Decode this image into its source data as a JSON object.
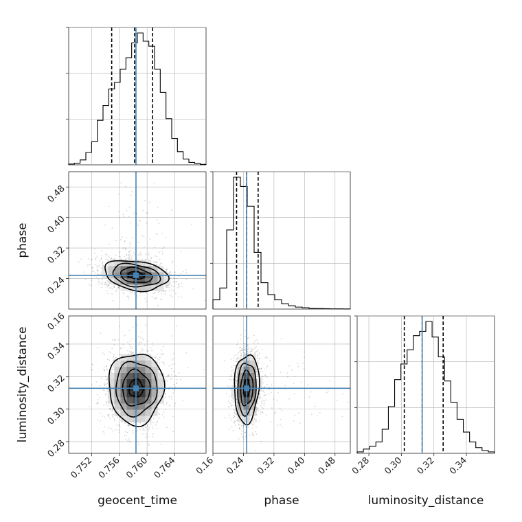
{
  "chart_data": {
    "type": "corner",
    "parameters": [
      {
        "key": "geocent_time",
        "label": "geocent_time",
        "truth": 0.7584,
        "quantiles": [
          0.7549,
          0.7582,
          0.7608
        ],
        "range": [
          0.7487,
          0.7685
        ]
      },
      {
        "key": "phase",
        "label": "phase",
        "truth": 0.2484,
        "quantiles": [
          0.222,
          0.2484,
          0.2785
        ],
        "range": [
          0.16,
          0.52
        ]
      },
      {
        "key": "luminosity_distance",
        "label": "luminosity_distance",
        "truth": 0.3128,
        "quantiles": [
          0.3018,
          0.3128,
          0.3257
        ],
        "range": [
          0.2728,
          0.3573
        ]
      }
    ],
    "ticks": {
      "geocent_time": [
        "0.752",
        "0.756",
        "0.760",
        "0.764"
      ],
      "phase": [
        "0.16",
        "0.24",
        "0.32",
        "0.40",
        "0.48"
      ],
      "luminosity_distance": [
        "0.28",
        "0.30",
        "0.32",
        "0.34"
      ]
    },
    "row_ticks": {
      "phase": [
        "0.24",
        "0.32",
        "0.40",
        "0.48"
      ],
      "luminosity_distance": [
        "0.28",
        "0.30",
        "0.32",
        "0.34"
      ]
    },
    "extra_tick_label": "0.16",
    "histograms": {
      "geocent_time": [
        0.5,
        1.0,
        3.0,
        7.5,
        14,
        27,
        36,
        46,
        50,
        58,
        65,
        74,
        80,
        75,
        72,
        58,
        44,
        28,
        16,
        8,
        3.5,
        1.5,
        0.8,
        0.3
      ],
      "phase": [
        7,
        16,
        60,
        100,
        93,
        78,
        43,
        20,
        11,
        7,
        4,
        2.5,
        1.5,
        1,
        0.5,
        0.4,
        0.3,
        0.2,
        0.2,
        0.1
      ],
      "luminosity_distance": [
        1,
        3,
        5,
        8,
        17,
        33,
        52,
        63,
        73,
        83,
        86,
        93,
        82,
        68,
        51,
        36,
        24,
        15,
        8,
        4,
        2,
        1
      ]
    },
    "truth_color": "#4682b4",
    "contour_color": "#000000",
    "grid": true
  }
}
